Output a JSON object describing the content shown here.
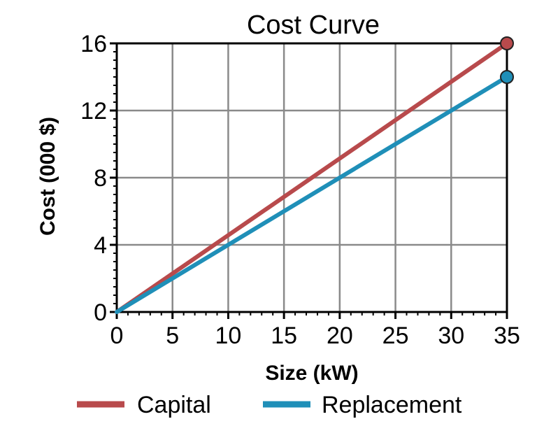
{
  "chart_data": {
    "type": "line",
    "title": "Cost Curve",
    "xlabel": "Size (kW)",
    "ylabel": "Cost (000 $)",
    "xlim": [
      0,
      35
    ],
    "ylim": [
      0,
      16
    ],
    "x_ticks": [
      0,
      5,
      10,
      15,
      20,
      25,
      30,
      35
    ],
    "y_ticks": [
      0,
      4,
      8,
      12,
      16
    ],
    "grid": true,
    "legend_position": "bottom",
    "series": [
      {
        "name": "Capital",
        "color": "#b84a4c",
        "x": [
          0,
          35
        ],
        "y": [
          0,
          16
        ]
      },
      {
        "name": "Replacement",
        "color": "#1f8fb8",
        "x": [
          0,
          35
        ],
        "y": [
          0,
          14
        ]
      }
    ]
  }
}
